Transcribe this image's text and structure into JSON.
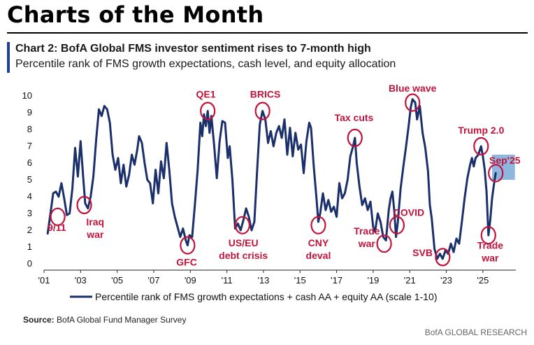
{
  "page": {
    "title": "Charts of the Month",
    "chart_heading": "Chart 2: BofA Global FMS investor sentiment rises to 7-month high",
    "chart_subheading": "Percentile rank of FMS growth expectations, cash level, and equity allocation",
    "source_label": "Source:",
    "source_text": "BofA Global Fund Manager Survey",
    "footer": "BofA GLOBAL RESEARCH"
  },
  "colors": {
    "line": "#1b2f6b",
    "annotation": "#c0143c",
    "highlight_box": "#8fb6de",
    "accent": "#1f3f8f"
  },
  "chart_data": {
    "type": "line",
    "title": "Chart 2: BofA Global FMS investor sentiment rises to 7-month high",
    "subtitle": "Percentile rank of FMS growth expectations, cash level, and equity allocation",
    "xlabel": "",
    "ylabel": "",
    "xlim": [
      2001.0,
      2026.8
    ],
    "ylim": [
      0,
      10
    ],
    "y_ticks": [
      "0",
      "1",
      "2",
      "3",
      "4",
      "5",
      "6",
      "7",
      "8",
      "9",
      "10"
    ],
    "x_tick_values": [
      2001,
      2003,
      2005,
      2007,
      2009,
      2011,
      2013,
      2015,
      2017,
      2019,
      2021,
      2023,
      2025
    ],
    "x_tick_labels": [
      "'01",
      "'03",
      "'05",
      "'07",
      "'09",
      "'11",
      "'13",
      "'15",
      "'17",
      "'19",
      "'21",
      "'23",
      "'25"
    ],
    "grid": false,
    "legend_position": "bottom",
    "series": [
      {
        "name": "Percentile rank of FMS growth expectations + cash AA + equity AA (scale 1-10)",
        "points": [
          [
            2001.2,
            1.8
          ],
          [
            2001.35,
            3.0
          ],
          [
            2001.5,
            4.2
          ],
          [
            2001.65,
            4.3
          ],
          [
            2001.8,
            4.0
          ],
          [
            2001.95,
            4.8
          ],
          [
            2002.1,
            3.9
          ],
          [
            2002.25,
            2.9
          ],
          [
            2002.4,
            3.0
          ],
          [
            2002.55,
            4.5
          ],
          [
            2002.7,
            6.9
          ],
          [
            2002.85,
            5.2
          ],
          [
            2003.0,
            7.3
          ],
          [
            2003.15,
            5.0
          ],
          [
            2003.25,
            3.6
          ],
          [
            2003.4,
            3.3
          ],
          [
            2003.55,
            4.0
          ],
          [
            2003.7,
            5.2
          ],
          [
            2003.85,
            7.4
          ],
          [
            2004.0,
            9.2
          ],
          [
            2004.15,
            8.8
          ],
          [
            2004.3,
            9.4
          ],
          [
            2004.45,
            9.2
          ],
          [
            2004.6,
            8.4
          ],
          [
            2004.75,
            6.5
          ],
          [
            2004.9,
            5.6
          ],
          [
            2005.05,
            6.3
          ],
          [
            2005.2,
            4.8
          ],
          [
            2005.35,
            5.9
          ],
          [
            2005.5,
            4.6
          ],
          [
            2005.65,
            5.3
          ],
          [
            2005.8,
            6.5
          ],
          [
            2005.95,
            5.9
          ],
          [
            2006.1,
            6.8
          ],
          [
            2006.2,
            7.6
          ],
          [
            2006.35,
            7.2
          ],
          [
            2006.5,
            6.0
          ],
          [
            2006.65,
            5.0
          ],
          [
            2006.8,
            4.8
          ],
          [
            2006.95,
            3.6
          ],
          [
            2007.1,
            5.6
          ],
          [
            2007.25,
            4.2
          ],
          [
            2007.4,
            6.1
          ],
          [
            2007.55,
            5.1
          ],
          [
            2007.7,
            7.2
          ],
          [
            2007.85,
            5.6
          ],
          [
            2008.0,
            3.6
          ],
          [
            2008.15,
            2.8
          ],
          [
            2008.3,
            2.2
          ],
          [
            2008.45,
            1.6
          ],
          [
            2008.6,
            2.1
          ],
          [
            2008.75,
            1.4
          ],
          [
            2008.85,
            1.1
          ],
          [
            2008.95,
            1.7
          ],
          [
            2009.1,
            1.6
          ],
          [
            2009.25,
            3.5
          ],
          [
            2009.4,
            5.6
          ],
          [
            2009.55,
            8.4
          ],
          [
            2009.65,
            7.6
          ],
          [
            2009.75,
            8.9
          ],
          [
            2009.85,
            8.2
          ],
          [
            2009.95,
            9.1
          ],
          [
            2010.05,
            7.8
          ],
          [
            2010.15,
            8.8
          ],
          [
            2010.3,
            7.1
          ],
          [
            2010.45,
            5.1
          ],
          [
            2010.6,
            7.3
          ],
          [
            2010.75,
            8.5
          ],
          [
            2010.9,
            8.4
          ],
          [
            2011.05,
            6.3
          ],
          [
            2011.15,
            7.0
          ],
          [
            2011.3,
            5.0
          ],
          [
            2011.45,
            2.1
          ],
          [
            2011.6,
            2.4
          ],
          [
            2011.75,
            2.0
          ],
          [
            2011.9,
            2.6
          ],
          [
            2012.05,
            3.3
          ],
          [
            2012.2,
            2.8
          ],
          [
            2012.35,
            2.0
          ],
          [
            2012.5,
            2.5
          ],
          [
            2012.65,
            5.5
          ],
          [
            2012.8,
            8.3
          ],
          [
            2012.95,
            9.1
          ],
          [
            2013.1,
            8.6
          ],
          [
            2013.25,
            7.2
          ],
          [
            2013.4,
            7.9
          ],
          [
            2013.55,
            7.0
          ],
          [
            2013.7,
            7.8
          ],
          [
            2013.85,
            8.2
          ],
          [
            2014.0,
            7.5
          ],
          [
            2014.15,
            8.6
          ],
          [
            2014.3,
            6.5
          ],
          [
            2014.45,
            8.1
          ],
          [
            2014.6,
            6.4
          ],
          [
            2014.75,
            7.8
          ],
          [
            2014.9,
            6.8
          ],
          [
            2015.05,
            7.1
          ],
          [
            2015.2,
            5.4
          ],
          [
            2015.35,
            7.3
          ],
          [
            2015.5,
            8.4
          ],
          [
            2015.6,
            8.1
          ],
          [
            2015.75,
            5.8
          ],
          [
            2015.9,
            3.9
          ],
          [
            2016.0,
            2.5
          ],
          [
            2016.1,
            3.0
          ],
          [
            2016.25,
            4.2
          ],
          [
            2016.4,
            3.2
          ],
          [
            2016.55,
            3.8
          ],
          [
            2016.7,
            3.1
          ],
          [
            2016.85,
            3.4
          ],
          [
            2017.0,
            2.8
          ],
          [
            2017.15,
            4.8
          ],
          [
            2017.3,
            3.9
          ],
          [
            2017.45,
            4.2
          ],
          [
            2017.6,
            5.0
          ],
          [
            2017.75,
            6.4
          ],
          [
            2017.9,
            7.0
          ],
          [
            2018.0,
            7.5
          ],
          [
            2018.1,
            6.0
          ],
          [
            2018.25,
            4.6
          ],
          [
            2018.4,
            3.5
          ],
          [
            2018.55,
            3.9
          ],
          [
            2018.7,
            3.2
          ],
          [
            2018.85,
            3.7
          ],
          [
            2019.0,
            2.2
          ],
          [
            2019.1,
            1.9
          ],
          [
            2019.25,
            3.0
          ],
          [
            2019.4,
            2.5
          ],
          [
            2019.55,
            1.6
          ],
          [
            2019.7,
            1.4
          ],
          [
            2019.85,
            3.2
          ],
          [
            2019.95,
            3.9
          ],
          [
            2020.05,
            4.3
          ],
          [
            2020.15,
            3.2
          ],
          [
            2020.25,
            1.6
          ],
          [
            2020.35,
            2.5
          ],
          [
            2020.5,
            4.5
          ],
          [
            2020.65,
            5.8
          ],
          [
            2020.8,
            7.0
          ],
          [
            2020.95,
            8.3
          ],
          [
            2021.05,
            9.3
          ],
          [
            2021.15,
            9.8
          ],
          [
            2021.3,
            9.6
          ],
          [
            2021.4,
            8.6
          ],
          [
            2021.55,
            9.4
          ],
          [
            2021.7,
            7.8
          ],
          [
            2021.85,
            6.9
          ],
          [
            2022.0,
            5.5
          ],
          [
            2022.1,
            3.5
          ],
          [
            2022.2,
            2.7
          ],
          [
            2022.35,
            0.9
          ],
          [
            2022.5,
            0.3
          ],
          [
            2022.65,
            0.6
          ],
          [
            2022.8,
            0.3
          ],
          [
            2022.95,
            0.8
          ],
          [
            2023.1,
            0.6
          ],
          [
            2023.25,
            1.2
          ],
          [
            2023.4,
            0.7
          ],
          [
            2023.55,
            1.5
          ],
          [
            2023.7,
            1.2
          ],
          [
            2023.85,
            2.5
          ],
          [
            2024.0,
            3.9
          ],
          [
            2024.15,
            5.1
          ],
          [
            2024.3,
            5.9
          ],
          [
            2024.4,
            6.3
          ],
          [
            2024.5,
            5.8
          ],
          [
            2024.6,
            6.3
          ],
          [
            2024.75,
            6.5
          ],
          [
            2024.9,
            7.0
          ],
          [
            2025.0,
            6.4
          ],
          [
            2025.1,
            5.6
          ],
          [
            2025.2,
            4.3
          ],
          [
            2025.3,
            1.7
          ],
          [
            2025.4,
            2.6
          ],
          [
            2025.5,
            3.9
          ],
          [
            2025.6,
            4.7
          ],
          [
            2025.7,
            5.4
          ]
        ]
      }
    ],
    "annotations": [
      {
        "label": "9/11",
        "x": 2001.75,
        "y": 2.8,
        "label_lines": [
          "9/11"
        ],
        "label_at": [
          2001.7,
          1.95
        ],
        "anchor": "middle"
      },
      {
        "label": "Iraq war",
        "x": 2003.2,
        "y": 3.5,
        "label_lines": [
          "Iraq",
          "war"
        ],
        "label_at": [
          2003.8,
          2.3
        ],
        "anchor": "middle"
      },
      {
        "label": "GFC",
        "x": 2008.85,
        "y": 1.1,
        "label_lines": [
          "GFC"
        ],
        "label_at": [
          2008.8,
          -0.1
        ],
        "anchor": "middle"
      },
      {
        "label": "QE1",
        "x": 2009.95,
        "y": 9.1,
        "label_lines": [
          "QE1"
        ],
        "label_at": [
          2009.85,
          9.9
        ],
        "anchor": "middle"
      },
      {
        "label": "US/EU debt crisis",
        "x": 2011.85,
        "y": 2.3,
        "label_lines": [
          "US/EU",
          "debt crisis"
        ],
        "label_at": [
          2011.9,
          1.05
        ],
        "anchor": "middle"
      },
      {
        "label": "BRICS",
        "x": 2012.95,
        "y": 9.1,
        "label_lines": [
          "BRICS"
        ],
        "label_at": [
          2013.1,
          9.9
        ],
        "anchor": "middle"
      },
      {
        "label": "CNY deval",
        "x": 2016.0,
        "y": 2.3,
        "label_lines": [
          "CNY",
          "deval"
        ],
        "label_at": [
          2016.0,
          1.05
        ],
        "anchor": "middle"
      },
      {
        "label": "Tax cuts",
        "x": 2018.0,
        "y": 7.5,
        "label_lines": [
          "Tax cuts"
        ],
        "label_at": [
          2017.95,
          8.5
        ],
        "anchor": "middle"
      },
      {
        "label": "Trade war",
        "x": 2019.6,
        "y": 1.2,
        "label_lines": [
          "Trade",
          "war"
        ],
        "label_at": [
          2018.65,
          1.75
        ],
        "anchor": "middle"
      },
      {
        "label": "COVID",
        "x": 2020.3,
        "y": 2.3,
        "label_lines": [
          "COVID"
        ],
        "label_at": [
          2020.95,
          2.85
        ],
        "anchor": "middle"
      },
      {
        "label": "Blue wave",
        "x": 2021.15,
        "y": 9.6,
        "label_lines": [
          "Blue wave"
        ],
        "label_at": [
          2021.15,
          10.25
        ],
        "anchor": "middle"
      },
      {
        "label": "SVB",
        "x": 2022.8,
        "y": 0.4,
        "label_lines": [
          "SVB"
        ],
        "label_at": [
          2021.7,
          0.45
        ],
        "anchor": "middle"
      },
      {
        "label": "Trump 2.0",
        "x": 2024.9,
        "y": 7.0,
        "label_lines": [
          "Trump 2.0"
        ],
        "label_at": [
          2024.9,
          7.75
        ],
        "anchor": "middle"
      },
      {
        "label": "Trade war",
        "x": 2025.3,
        "y": 1.7,
        "label_lines": [
          "Trade",
          "war"
        ],
        "label_at": [
          2025.4,
          0.9
        ],
        "anchor": "middle"
      },
      {
        "label": "Sep'25",
        "x": 2025.7,
        "y": 5.4,
        "label_lines": [
          "Sep'25"
        ],
        "label_at": [
          2026.2,
          5.95
        ],
        "anchor": "middle",
        "highlight": {
          "x_range": [
            2025.5,
            2026.75
          ],
          "y_range": [
            5.0,
            6.5
          ]
        }
      }
    ]
  }
}
